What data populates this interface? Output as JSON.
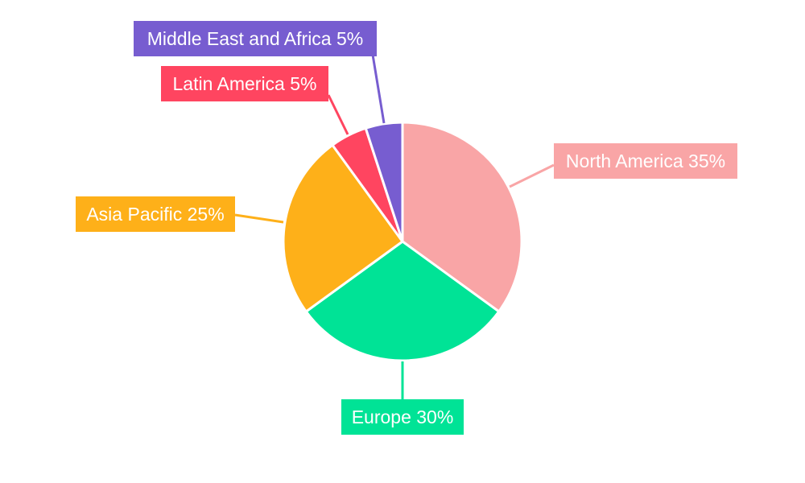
{
  "chart_data": {
    "type": "pie",
    "title": "",
    "categories": [
      "North America",
      "Europe",
      "Asia Pacific",
      "Latin America",
      "Middle East and Africa"
    ],
    "values": [
      35,
      30,
      25,
      5,
      5
    ],
    "labels": [
      "North America 35%",
      "Europe 30%",
      "Asia Pacific 25%",
      "Latin America 5%",
      "Middle East and Africa 5%"
    ],
    "colors": [
      "#F9A5A6",
      "#00E396",
      "#FEB019",
      "#FF4560",
      "#775DD0"
    ],
    "legend": "none"
  }
}
